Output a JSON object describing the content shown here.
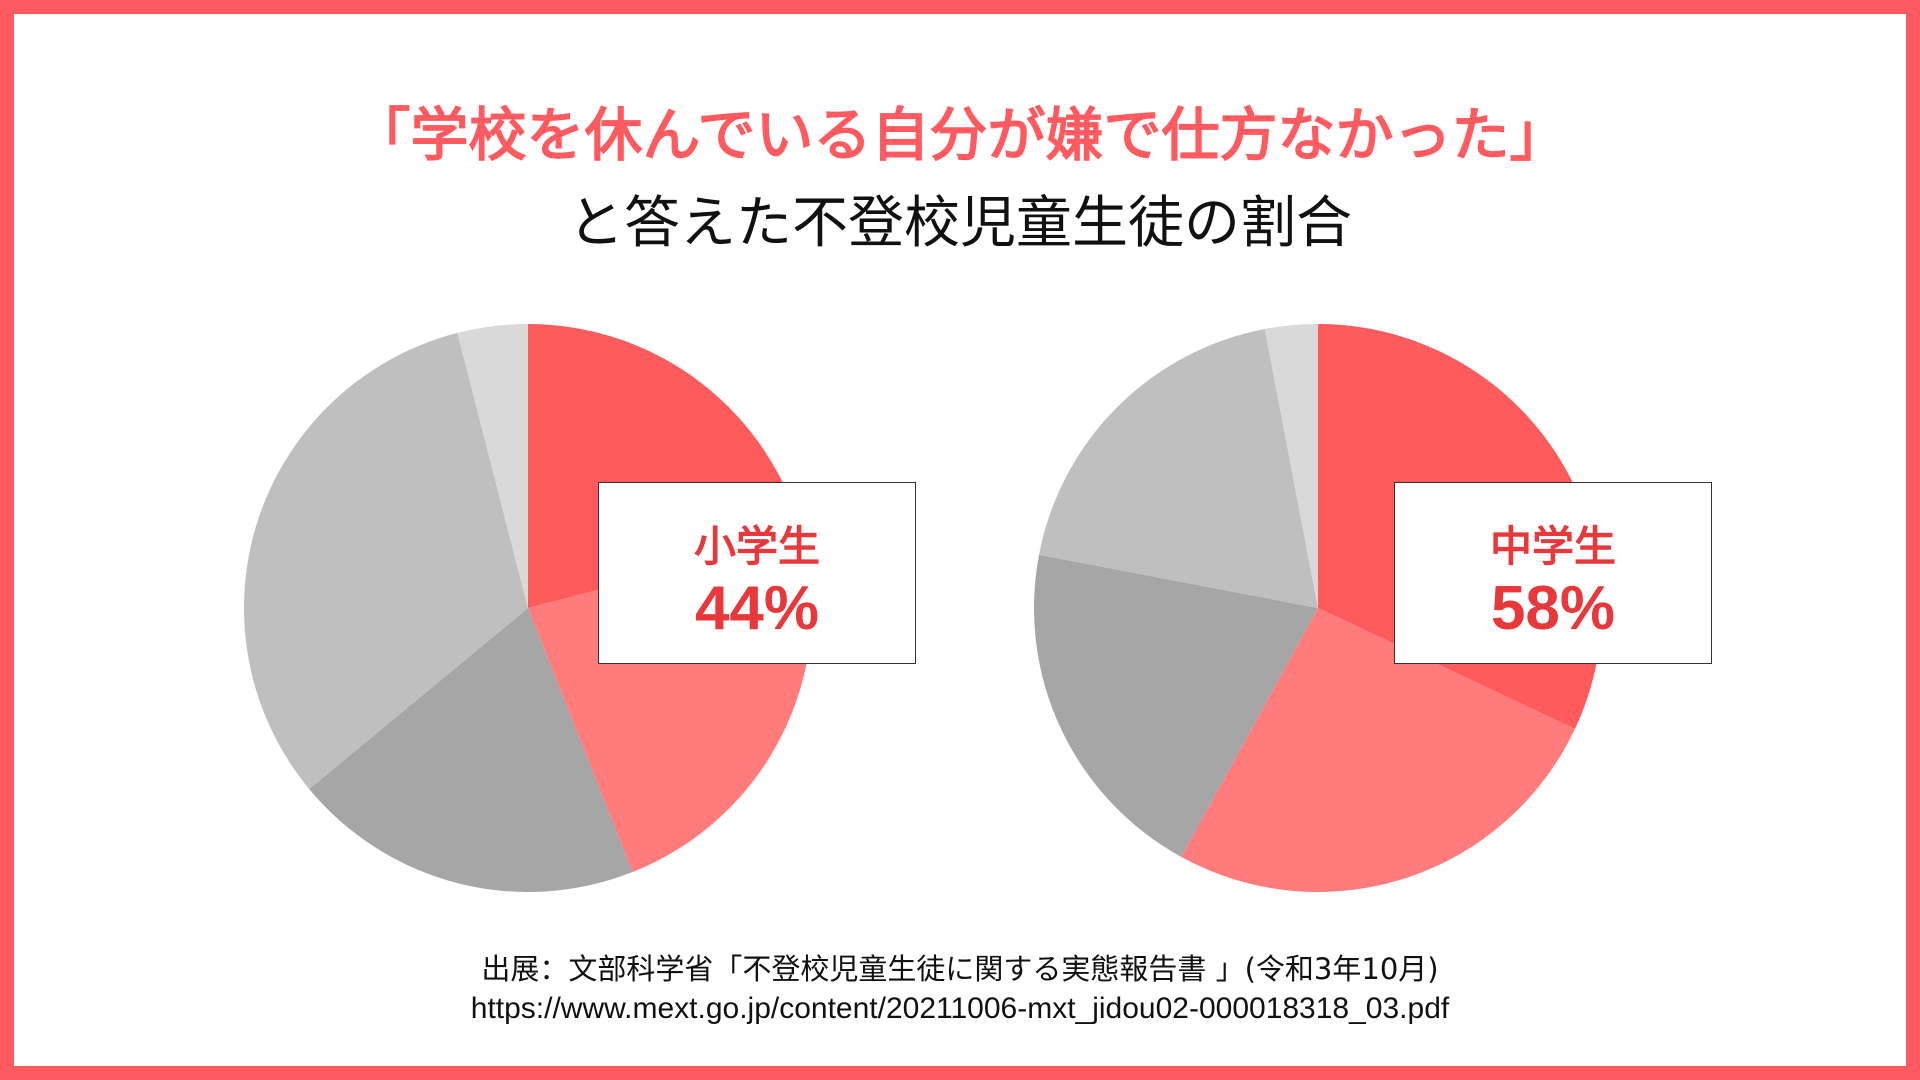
{
  "title": {
    "line1": "「学校を休んでいる自分が嫌で仕方なかった」",
    "line2": "と答えた不登校児童生徒の割合"
  },
  "colors": {
    "frame": "#ff5a5f",
    "accent": "#e8383c",
    "slice_colors": [
      "#ff5a5c",
      "#ff7b7c",
      "#a6a6a6",
      "#bfbfbf",
      "#d9d9d9"
    ]
  },
  "chart_data": [
    {
      "type": "pie",
      "highlight_label": "小学生",
      "highlight_value": "44%",
      "values": [
        21,
        23,
        20,
        32,
        4
      ]
    },
    {
      "type": "pie",
      "highlight_label": "中学生",
      "highlight_value": "58%",
      "values": [
        32,
        26,
        20,
        19,
        3
      ]
    }
  ],
  "source": {
    "line1": "出展：文部科学省「不登校児童生徒に関する実態報告書 」(令和3年10月)",
    "line2": "https://www.mext.go.jp/content/20211006-mxt_jidou02-000018318_03.pdf"
  }
}
